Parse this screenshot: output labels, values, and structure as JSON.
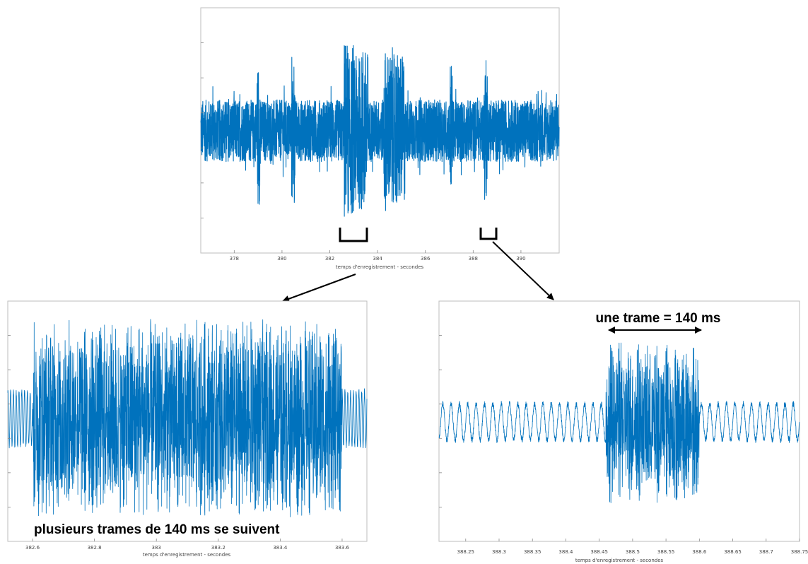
{
  "chart_data": [
    {
      "id": "overview",
      "type": "line",
      "xlabel": "temps d'enregistrement - secondes",
      "xlim": [
        376.6,
        391.6
      ],
      "xticks": [
        "378",
        "380",
        "382",
        "384",
        "386",
        "388",
        "390"
      ],
      "xtick_values": [
        378,
        380,
        382,
        384,
        386,
        388,
        390
      ],
      "ylim": [
        -1,
        1
      ],
      "grid": false,
      "series": [
        {
          "color": "#0072BD",
          "baseline_amplitude": 0.3,
          "bursts": [
            {
              "start": 378.95,
              "end": 379.1,
              "amplitude": 0.78
            },
            {
              "start": 380.4,
              "end": 380.55,
              "amplitude": 0.78
            },
            {
              "start": 382.6,
              "end": 383.6,
              "amplitude": 0.92
            },
            {
              "start": 384.25,
              "end": 385.15,
              "amplitude": 0.85
            },
            {
              "start": 387.0,
              "end": 387.15,
              "amplitude": 0.76
            },
            {
              "start": 388.45,
              "end": 388.6,
              "amplitude": 0.76
            }
          ]
        }
      ]
    },
    {
      "id": "zoom-left",
      "type": "line",
      "xlabel": "temps d'enregistrement - secondes",
      "xlim": [
        382.52,
        383.68
      ],
      "xticks": [
        "382.6",
        "382.8",
        "383",
        "383.2",
        "383.4",
        "383.6"
      ],
      "xtick_values": [
        382.6,
        382.8,
        383.0,
        383.2,
        383.4,
        383.6
      ],
      "ylim": [
        -1,
        1
      ],
      "grid": false,
      "series": [
        {
          "color": "#0072BD",
          "baseline_amplitude": 0.27,
          "frame_duration_ms": 140,
          "bursts": [
            {
              "start": 382.6,
              "end": 383.6,
              "amplitude": 0.88
            }
          ]
        }
      ]
    },
    {
      "id": "zoom-right",
      "type": "line",
      "xlabel": "temps d'enregistrement - secondes",
      "xlim": [
        388.21,
        388.75
      ],
      "xticks": [
        "388.25",
        "388.3",
        "388.35",
        "388.4",
        "388.45",
        "388.5",
        "388.55",
        "388.6",
        "388.65",
        "388.7",
        "388.75"
      ],
      "xtick_values": [
        388.25,
        388.3,
        388.35,
        388.4,
        388.45,
        388.5,
        388.55,
        388.6,
        388.65,
        388.7,
        388.75
      ],
      "ylim": [
        -1,
        1
      ],
      "grid": false,
      "series": [
        {
          "color": "#0072BD",
          "baseline_amplitude": 0.16,
          "frame_duration_ms": 140,
          "bursts": [
            {
              "start": 388.46,
              "end": 388.6,
              "amplitude": 0.72
            }
          ]
        }
      ]
    }
  ],
  "annotations": {
    "zoom_left_caption": "plusieurs trames de 140 ms se suivent",
    "zoom_right_caption": "une trame = 140 ms"
  }
}
